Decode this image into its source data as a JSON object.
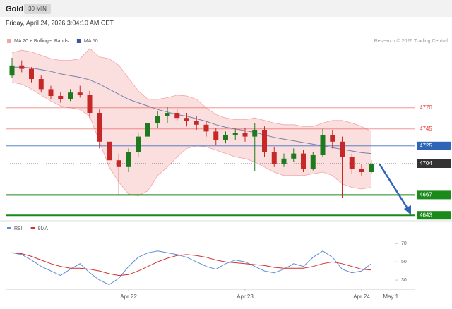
{
  "chart_data": {
    "type": "candlestick",
    "title": "Gold",
    "timeframe": "30 MIN",
    "subtitle": "Friday, April 24, 2026 3:04:10 AM CET",
    "credit": "Research © 2026 Trading Central",
    "categories": [
      null,
      null,
      null,
      null,
      null,
      null,
      null,
      null,
      null,
      null,
      null,
      null,
      "Apr 22",
      null,
      null,
      null,
      null,
      null,
      null,
      null,
      null,
      null,
      null,
      null,
      "Apr 23",
      null,
      null,
      null,
      null,
      null,
      null,
      null,
      null,
      null,
      null,
      null,
      "Apr 24",
      null,
      null,
      "May 1"
    ],
    "open": [
      4808,
      4820,
      4816,
      4804,
      4792,
      4784,
      4780,
      4788,
      4785,
      4764,
      4730,
      4708,
      4700,
      4718,
      4736,
      4752,
      4760,
      4764,
      4758,
      4754,
      4750,
      4742,
      4732,
      4738,
      4740,
      4736,
      4744,
      4718,
      4704,
      4710,
      4716,
      4698,
      4714,
      4738,
      4730,
      4712,
      4698,
      4694,
      null,
      null
    ],
    "high": [
      4829,
      4826,
      4818,
      4808,
      4796,
      4788,
      4792,
      4796,
      4790,
      4768,
      4736,
      4716,
      4722,
      4740,
      4756,
      4766,
      4771,
      4768,
      4764,
      4760,
      4754,
      4746,
      4742,
      4745,
      4746,
      4752,
      4748,
      4724,
      4716,
      4722,
      4720,
      4718,
      4745,
      4744,
      4736,
      4716,
      4704,
      4708,
      null,
      null
    ],
    "low": [
      4805,
      4812,
      4800,
      4788,
      4780,
      4776,
      4778,
      4782,
      4758,
      4722,
      4700,
      4667,
      4694,
      4712,
      4730,
      4746,
      4752,
      4754,
      4748,
      4744,
      4736,
      4726,
      4728,
      4732,
      4730,
      4695,
      4712,
      4700,
      4700,
      4706,
      4694,
      4696,
      4712,
      4722,
      4664,
      4692,
      4690,
      4692,
      null,
      null
    ],
    "close": [
      4820,
      4816,
      4804,
      4792,
      4784,
      4780,
      4788,
      4785,
      4764,
      4730,
      4708,
      4700,
      4718,
      4736,
      4752,
      4760,
      4764,
      4758,
      4754,
      4750,
      4742,
      4732,
      4738,
      4740,
      4736,
      4744,
      4718,
      4704,
      4710,
      4716,
      4698,
      4714,
      4738,
      4730,
      4712,
      4698,
      4694,
      4704,
      null,
      null
    ],
    "up_color": "#1f7a1f",
    "down_color": "#c62828",
    "series": [
      {
        "name": "MA 20 + Bollinger Bands",
        "color": "#f4a3a3",
        "upper": [
          4835,
          4838,
          4836,
          4832,
          4828,
          4826,
          4826,
          4828,
          4840,
          4830,
          4828,
          4820,
          4805,
          4790,
          4780,
          4780,
          4782,
          4785,
          4784,
          4780,
          4770,
          4762,
          4758,
          4756,
          4756,
          4758,
          4755,
          4752,
          4750,
          4750,
          4748,
          4748,
          4752,
          4755,
          4755,
          4752,
          4748,
          4742,
          null,
          null
        ],
        "lower": [
          4800,
          4798,
          4792,
          4785,
          4778,
          4772,
          4770,
          4768,
          4760,
          4730,
          4700,
          4682,
          4668,
          4666,
          4672,
          4690,
          4700,
          4712,
          4722,
          4725,
          4724,
          4720,
          4716,
          4712,
          4710,
          4706,
          4700,
          4694,
          4690,
          4690,
          4690,
          4692,
          4694,
          4690,
          4680,
          4676,
          4674,
          4676,
          null,
          null
        ]
      },
      {
        "name": "MA 50",
        "color": "#3b5998",
        "values": [
          4818,
          4818,
          4817,
          4815,
          4813,
          4810,
          4808,
          4806,
          4803,
          4798,
          4792,
          4786,
          4780,
          4776,
          4772,
          4768,
          4765,
          4762,
          4760,
          4757,
          4754,
          4750,
          4747,
          4745,
          4743,
          4741,
          4738,
          4735,
          4733,
          4731,
          4729,
          4727,
          4725,
          4723,
          4721,
          4719,
          4717,
          4716,
          null,
          null
        ]
      }
    ],
    "ylim": [
      4639,
      4839
    ],
    "levels": [
      {
        "value": 4770,
        "color": "#e53935",
        "boxed": false
      },
      {
        "value": 4745,
        "color": "#e53935",
        "boxed": false
      },
      {
        "value": 4725,
        "color": "#2f65b8",
        "boxed": true
      },
      {
        "value": 4704,
        "color": "#333333",
        "boxed": true
      },
      {
        "value": 4667,
        "color": "#1a8a1a",
        "boxed": true
      },
      {
        "value": 4643,
        "color": "#1a8a1a",
        "boxed": true
      }
    ],
    "panel": {
      "type": "line",
      "series": [
        {
          "name": "RSI",
          "color": "#5b8ed6",
          "values": [
            60,
            58,
            52,
            45,
            40,
            35,
            42,
            48,
            38,
            30,
            25,
            32,
            45,
            55,
            60,
            62,
            60,
            58,
            55,
            50,
            45,
            42,
            48,
            52,
            50,
            45,
            40,
            38,
            42,
            48,
            45,
            55,
            62,
            55,
            42,
            38,
            40,
            48,
            null,
            null
          ]
        },
        {
          "name": "9MA",
          "color": "#d32f2f",
          "values": [
            60,
            59,
            56,
            52,
            48,
            45,
            43,
            43,
            42,
            40,
            37,
            35,
            36,
            40,
            45,
            50,
            54,
            57,
            58,
            57,
            55,
            52,
            50,
            49,
            48,
            47,
            46,
            44,
            43,
            43,
            43,
            45,
            48,
            50,
            48,
            45,
            42,
            41,
            null,
            null
          ]
        }
      ],
      "ylim": [
        20,
        78
      ],
      "yticks": [
        30,
        50,
        70
      ]
    }
  }
}
